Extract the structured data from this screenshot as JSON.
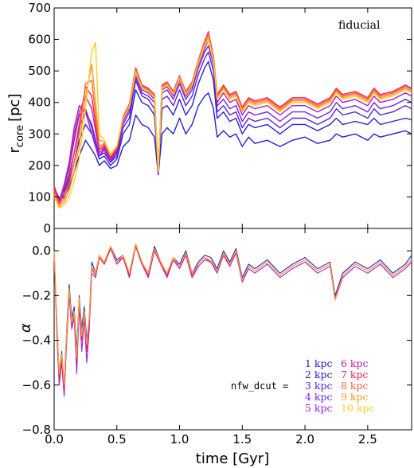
{
  "chart_data": [
    {
      "panel": "top",
      "type": "line",
      "annotation": "fiducial",
      "ylabel_main": "r",
      "ylabel_sub": "core",
      "ylabel_unit": "[pc]",
      "xlim": [
        0.0,
        2.85
      ],
      "ylim": [
        0,
        700
      ],
      "yticks": [
        "0",
        "100",
        "200",
        "300",
        "400",
        "500",
        "600",
        "700"
      ],
      "ytick_values": [
        0,
        100,
        200,
        300,
        400,
        500,
        600,
        700
      ],
      "x": [
        0.0,
        0.04,
        0.08,
        0.12,
        0.16,
        0.2,
        0.25,
        0.3,
        0.33,
        0.36,
        0.4,
        0.45,
        0.5,
        0.55,
        0.6,
        0.65,
        0.7,
        0.75,
        0.8,
        0.83,
        0.86,
        0.9,
        0.95,
        1.0,
        1.05,
        1.1,
        1.15,
        1.2,
        1.23,
        1.27,
        1.3,
        1.35,
        1.4,
        1.45,
        1.5,
        1.55,
        1.6,
        1.7,
        1.8,
        1.9,
        2.0,
        2.1,
        2.2,
        2.25,
        2.3,
        2.4,
        2.5,
        2.55,
        2.6,
        2.7,
        2.8,
        2.85
      ],
      "series": [
        {
          "color": "#2222cc",
          "values": [
            130,
            90,
            100,
            130,
            180,
            230,
            280,
            250,
            230,
            200,
            215,
            190,
            200,
            260,
            280,
            360,
            330,
            320,
            290,
            170,
            300,
            320,
            300,
            350,
            300,
            330,
            390,
            420,
            430,
            380,
            290,
            310,
            290,
            300,
            260,
            290,
            270,
            280,
            260,
            280,
            290,
            270,
            280,
            300,
            290,
            300,
            280,
            300,
            290,
            300,
            310,
            300
          ]
        },
        {
          "color": "#2a20d8",
          "values": [
            130,
            95,
            110,
            150,
            210,
            280,
            330,
            300,
            260,
            220,
            230,
            200,
            220,
            300,
            330,
            440,
            400,
            390,
            360,
            175,
            380,
            390,
            360,
            410,
            360,
            390,
            460,
            510,
            530,
            470,
            350,
            370,
            340,
            350,
            300,
            330,
            320,
            330,
            300,
            330,
            330,
            310,
            330,
            350,
            330,
            340,
            330,
            350,
            330,
            340,
            350,
            345
          ]
        },
        {
          "color": "#5522dd",
          "values": [
            130,
            95,
            120,
            170,
            240,
            320,
            370,
            330,
            280,
            230,
            240,
            210,
            230,
            320,
            350,
            470,
            420,
            410,
            380,
            175,
            410,
            420,
            390,
            440,
            390,
            420,
            490,
            540,
            560,
            500,
            370,
            390,
            360,
            370,
            320,
            350,
            340,
            350,
            320,
            350,
            350,
            330,
            350,
            380,
            360,
            370,
            350,
            380,
            360,
            370,
            390,
            380
          ]
        },
        {
          "color": "#7a22e0",
          "values": [
            130,
            90,
            130,
            190,
            280,
            360,
            380,
            320,
            270,
            230,
            250,
            210,
            240,
            330,
            370,
            480,
            430,
            420,
            400,
            175,
            430,
            440,
            410,
            460,
            410,
            440,
            510,
            560,
            580,
            520,
            390,
            410,
            380,
            390,
            340,
            370,
            360,
            370,
            340,
            370,
            370,
            350,
            370,
            400,
            380,
            390,
            370,
            400,
            380,
            390,
            410,
            400
          ]
        },
        {
          "color": "#a020e0",
          "values": [
            135,
            85,
            140,
            210,
            320,
            390,
            370,
            300,
            260,
            230,
            255,
            215,
            245,
            340,
            380,
            490,
            440,
            430,
            410,
            175,
            440,
            450,
            420,
            470,
            420,
            450,
            520,
            570,
            600,
            530,
            400,
            430,
            400,
            410,
            360,
            390,
            380,
            390,
            360,
            390,
            390,
            370,
            390,
            420,
            400,
            410,
            390,
            420,
            400,
            410,
            430,
            420
          ]
        },
        {
          "color": "#cc2299",
          "values": [
            135,
            85,
            130,
            200,
            300,
            370,
            420,
            380,
            310,
            240,
            260,
            220,
            250,
            350,
            390,
            500,
            450,
            440,
            420,
            180,
            450,
            460,
            430,
            480,
            430,
            460,
            530,
            590,
            620,
            540,
            420,
            450,
            420,
            430,
            380,
            410,
            400,
            410,
            380,
            410,
            410,
            390,
            410,
            440,
            420,
            430,
            410,
            440,
            420,
            430,
            450,
            440
          ]
        },
        {
          "color": "#ee2255",
          "values": [
            130,
            80,
            110,
            160,
            240,
            330,
            450,
            420,
            330,
            250,
            265,
            225,
            255,
            355,
            395,
            510,
            455,
            445,
            425,
            180,
            455,
            465,
            435,
            485,
            435,
            465,
            535,
            595,
            625,
            545,
            425,
            455,
            425,
            435,
            385,
            415,
            405,
            415,
            385,
            415,
            415,
            395,
            415,
            445,
            425,
            435,
            415,
            445,
            425,
            435,
            455,
            445
          ]
        },
        {
          "color": "#ff6640",
          "values": [
            120,
            75,
            95,
            140,
            210,
            300,
            460,
            470,
            360,
            260,
            270,
            230,
            258,
            352,
            392,
            505,
            452,
            442,
            422,
            180,
            452,
            462,
            432,
            482,
            432,
            462,
            532,
            590,
            618,
            540,
            420,
            450,
            420,
            430,
            380,
            410,
            400,
            410,
            380,
            410,
            410,
            390,
            410,
            440,
            420,
            430,
            410,
            440,
            420,
            430,
            450,
            440
          ]
        },
        {
          "color": "#ff9922",
          "values": [
            110,
            70,
            85,
            120,
            180,
            260,
            420,
            520,
            400,
            280,
            275,
            232,
            260,
            350,
            388,
            500,
            448,
            438,
            418,
            180,
            448,
            458,
            428,
            478,
            428,
            458,
            528,
            585,
            610,
            535,
            415,
            445,
            415,
            425,
            375,
            405,
            395,
            405,
            375,
            405,
            405,
            385,
            405,
            435,
            415,
            425,
            405,
            435,
            415,
            425,
            445,
            435
          ]
        },
        {
          "color": "#ffcc22",
          "values": [
            100,
            65,
            75,
            100,
            150,
            220,
            380,
            560,
            590,
            300,
            280,
            235,
            262,
            348,
            385,
            495,
            445,
            435,
            415,
            180,
            445,
            455,
            425,
            475,
            425,
            455,
            525,
            580,
            600,
            530,
            410,
            440,
            410,
            420,
            370,
            400,
            390,
            400,
            370,
            400,
            400,
            380,
            400,
            430,
            410,
            420,
            400,
            430,
            410,
            420,
            440,
            430
          ]
        }
      ]
    },
    {
      "panel": "bottom",
      "type": "line",
      "xlabel": "time [Gyr]",
      "ylabel": "α",
      "xlim": [
        0.0,
        2.85
      ],
      "ylim": [
        -0.8,
        0.1
      ],
      "xticks": [
        "0.0",
        "0.5",
        "1.0",
        "1.5",
        "2.0",
        "2.5"
      ],
      "xtick_values": [
        0.0,
        0.5,
        1.0,
        1.5,
        2.0,
        2.5
      ],
      "yticks": [
        "−0.8",
        "−0.6",
        "−0.4",
        "−0.2",
        "0.0"
      ],
      "ytick_values": [
        -0.8,
        -0.6,
        -0.4,
        -0.2,
        0.0
      ],
      "legend_title": "nfw_dcut =",
      "legend_entries": [
        "1 kpc",
        "2 kpc",
        "3 kpc",
        "4 kpc",
        "5 kpc",
        "6 kpc",
        "7 kpc",
        "8 kpc",
        "9 kpc",
        "10 kpc"
      ],
      "x": [
        0.0,
        0.02,
        0.04,
        0.06,
        0.08,
        0.1,
        0.12,
        0.14,
        0.16,
        0.18,
        0.2,
        0.22,
        0.24,
        0.26,
        0.28,
        0.3,
        0.33,
        0.36,
        0.4,
        0.45,
        0.5,
        0.55,
        0.6,
        0.65,
        0.7,
        0.75,
        0.8,
        0.85,
        0.9,
        0.95,
        1.0,
        1.05,
        1.1,
        1.15,
        1.2,
        1.25,
        1.3,
        1.35,
        1.4,
        1.45,
        1.5,
        1.55,
        1.6,
        1.7,
        1.8,
        1.9,
        2.0,
        2.1,
        2.2,
        2.24,
        2.3,
        2.4,
        2.5,
        2.6,
        2.7,
        2.8,
        2.85
      ],
      "series": [
        {
          "color": "#2222cc",
          "values": [
            0.0,
            -0.3,
            -0.55,
            -0.45,
            -0.6,
            -0.35,
            -0.15,
            -0.3,
            -0.25,
            -0.45,
            -0.2,
            -0.35,
            -0.25,
            -0.4,
            -0.3,
            -0.05,
            -0.1,
            -0.02,
            -0.05,
            0.02,
            -0.04,
            -0.02,
            -0.1,
            0.03,
            -0.05,
            -0.1,
            0.02,
            -0.05,
            -0.1,
            -0.03,
            -0.06,
            0.0,
            -0.1,
            -0.05,
            -0.02,
            -0.03,
            -0.08,
            0.0,
            -0.05,
            0.01,
            -0.12,
            -0.06,
            -0.08,
            -0.04,
            -0.1,
            -0.06,
            -0.03,
            -0.08,
            -0.05,
            -0.2,
            -0.1,
            -0.05,
            -0.08,
            -0.04,
            -0.1,
            -0.06,
            -0.02
          ]
        },
        {
          "color": "#a020e0",
          "values": [
            0.0,
            -0.35,
            -0.6,
            -0.5,
            -0.65,
            -0.4,
            -0.2,
            -0.35,
            -0.3,
            -0.55,
            -0.25,
            -0.45,
            -0.3,
            -0.5,
            -0.35,
            -0.1,
            -0.12,
            -0.03,
            -0.06,
            0.01,
            -0.06,
            -0.03,
            -0.12,
            0.02,
            -0.06,
            -0.12,
            0.0,
            -0.06,
            -0.12,
            -0.04,
            -0.08,
            -0.02,
            -0.12,
            -0.07,
            -0.04,
            -0.05,
            -0.1,
            -0.02,
            -0.07,
            -0.01,
            -0.14,
            -0.08,
            -0.1,
            -0.06,
            -0.12,
            -0.08,
            -0.05,
            -0.1,
            -0.07,
            -0.22,
            -0.12,
            -0.07,
            -0.1,
            -0.06,
            -0.12,
            -0.08,
            -0.05
          ]
        },
        {
          "color": "#ee2255",
          "values": [
            0.0,
            -0.32,
            -0.58,
            -0.48,
            -0.62,
            -0.38,
            -0.18,
            -0.33,
            -0.28,
            -0.5,
            -0.22,
            -0.4,
            -0.28,
            -0.45,
            -0.32,
            -0.08,
            -0.11,
            -0.03,
            -0.06,
            0.01,
            -0.05,
            -0.03,
            -0.11,
            0.02,
            -0.06,
            -0.11,
            0.0,
            -0.06,
            -0.11,
            -0.04,
            -0.07,
            -0.02,
            -0.11,
            -0.06,
            -0.03,
            -0.05,
            -0.09,
            -0.02,
            -0.06,
            -0.01,
            -0.13,
            -0.07,
            -0.09,
            -0.05,
            -0.11,
            -0.07,
            -0.04,
            -0.09,
            -0.06,
            -0.21,
            -0.11,
            -0.06,
            -0.09,
            -0.05,
            -0.11,
            -0.07,
            -0.04
          ]
        },
        {
          "color": "#ffaa22",
          "values": [
            0.0,
            -0.3,
            -0.55,
            -0.46,
            -0.6,
            -0.36,
            -0.17,
            -0.32,
            -0.27,
            -0.48,
            -0.21,
            -0.38,
            -0.27,
            -0.42,
            -0.3,
            -0.07,
            -0.1,
            -0.02,
            -0.05,
            0.02,
            -0.05,
            -0.02,
            -0.1,
            0.03,
            -0.05,
            -0.1,
            0.01,
            -0.05,
            -0.1,
            -0.03,
            -0.07,
            -0.01,
            -0.1,
            -0.06,
            -0.03,
            -0.04,
            -0.09,
            -0.01,
            -0.06,
            0.0,
            -0.13,
            -0.07,
            -0.09,
            -0.05,
            -0.11,
            -0.07,
            -0.04,
            -0.09,
            -0.06,
            -0.22,
            -0.11,
            -0.06,
            -0.09,
            -0.05,
            -0.11,
            -0.07,
            -0.04
          ]
        }
      ]
    }
  ],
  "legend_colors": [
    "#2222cc",
    "#2a20d8",
    "#5522dd",
    "#7a22e0",
    "#a020e0",
    "#cc2299",
    "#ee2255",
    "#ff6640",
    "#ff9922",
    "#ffcc22"
  ]
}
